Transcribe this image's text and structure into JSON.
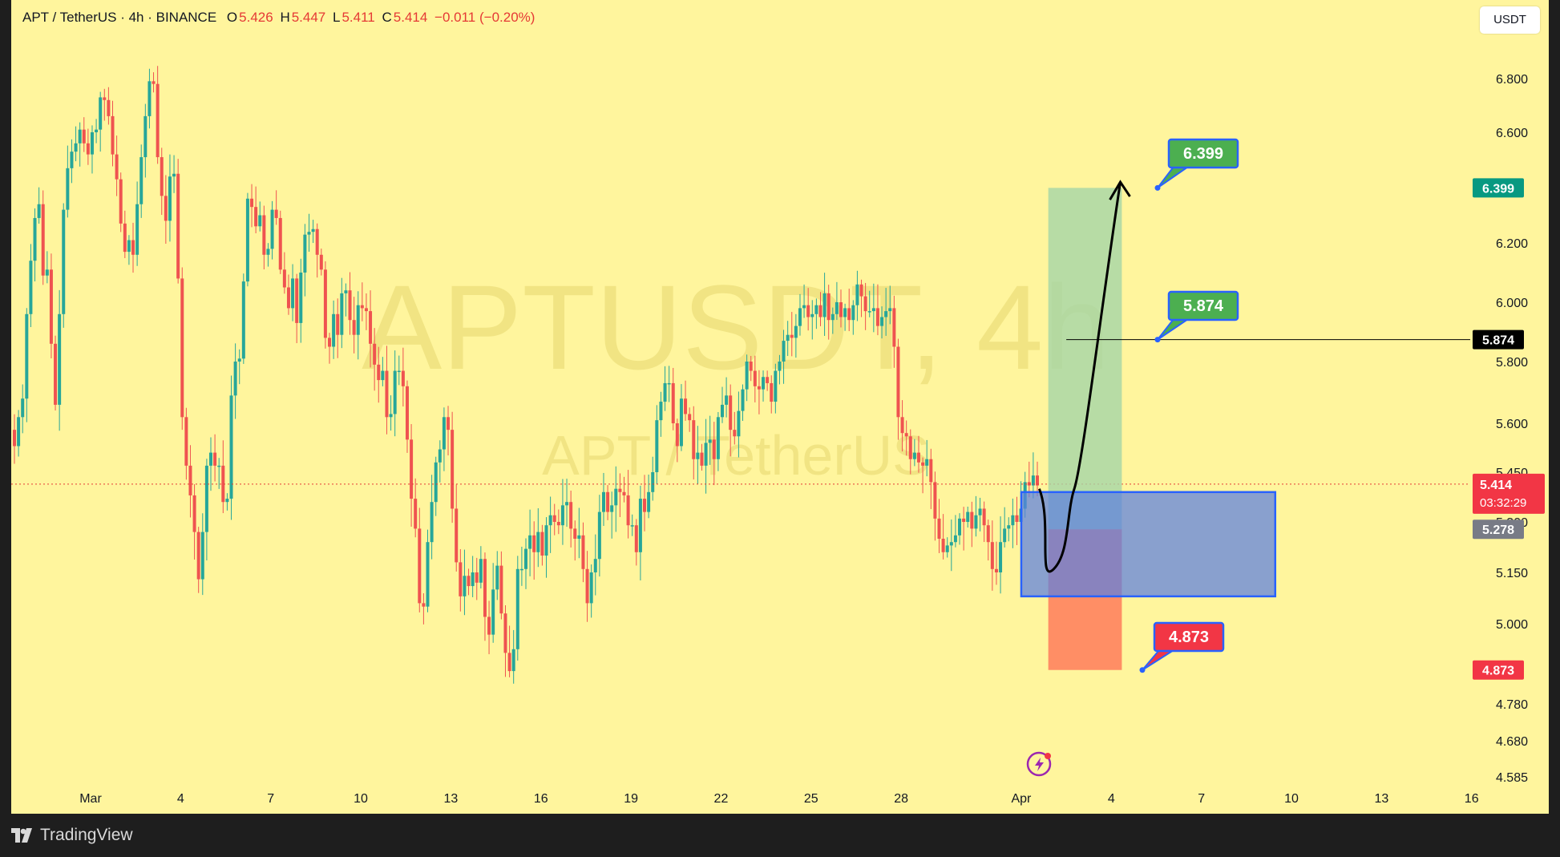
{
  "header": {
    "symbol": "APT / TetherUS · 4h · BINANCE",
    "open_label": "O",
    "open": "5.426",
    "high_label": "H",
    "high": "5.447",
    "low_label": "L",
    "low": "5.411",
    "close_label": "C",
    "close": "5.414",
    "change": "−0.011 (−0.20%)"
  },
  "currency_button": "USDT",
  "watermark": {
    "main": "APTUSDT, 4h",
    "sub": "APT / TetherUS"
  },
  "footer": {
    "brand": "TradingView"
  },
  "colors": {
    "background": "#fff59d",
    "up": "#26a69a",
    "down": "#ef5350",
    "target": "#4caf50",
    "stop": "#f23645",
    "zone": "#5b7fe0",
    "zone_border": "#2962ff"
  },
  "chart_data": {
    "type": "candlestick",
    "y_axis": {
      "ticks": [
        "6.800",
        "6.600",
        "6.200",
        "6.000",
        "5.800",
        "5.600",
        "5.450",
        "5.300",
        "5.150",
        "5.000",
        "4.780",
        "4.680",
        "4.585"
      ],
      "unit": "USDT"
    },
    "x_axis": {
      "ticks": [
        "Mar",
        "4",
        "7",
        "10",
        "13",
        "16",
        "19",
        "22",
        "25",
        "28",
        "Apr",
        "4",
        "7",
        "10",
        "13",
        "16"
      ]
    },
    "current_price": {
      "value": 5.414,
      "label": "5.414",
      "countdown": "03:32:29"
    },
    "price_tags": [
      {
        "label": "6.399",
        "value": 6.399,
        "color": "#089981"
      },
      {
        "label": "5.874",
        "value": 5.874,
        "color": "#000000"
      },
      {
        "label": "5.278",
        "value": 5.278,
        "color": "#787b86"
      },
      {
        "label": "4.873",
        "value": 4.873,
        "color": "#f23645"
      }
    ],
    "position": {
      "entry": 5.278,
      "target": 6.399,
      "stop": 4.873
    },
    "demand_zone": {
      "top": 5.39,
      "bottom": 5.08
    },
    "callouts": [
      {
        "label": "6.399",
        "value": 6.399,
        "color": "#4caf50"
      },
      {
        "label": "5.874",
        "value": 5.874,
        "color": "#4caf50"
      },
      {
        "label": "4.873",
        "value": 4.873,
        "color": "#f23645"
      }
    ],
    "horizontal_line": 5.874,
    "price_path": [
      {
        "date": "Apr 1",
        "price": 5.4
      },
      {
        "date": "Apr 1",
        "price": 5.16
      },
      {
        "date": "Apr 2",
        "price": 5.4
      },
      {
        "date": "Apr 3",
        "price": 5.98
      },
      {
        "date": "Apr 5",
        "price": 6.42
      }
    ],
    "closes": [
      5.53,
      5.62,
      5.68,
      5.96,
      6.14,
      6.29,
      6.34,
      6.09,
      6.11,
      5.86,
      5.66,
      5.96,
      6.32,
      6.47,
      6.53,
      6.56,
      6.61,
      6.56,
      6.52,
      6.6,
      6.61,
      6.73,
      6.72,
      6.66,
      6.52,
      6.43,
      6.27,
      6.17,
      6.21,
      6.16,
      6.34,
      6.51,
      6.66,
      6.79,
      6.78,
      6.51,
      6.37,
      6.28,
      6.44,
      6.45,
      6.08,
      5.62,
      5.47,
      5.38,
      5.27,
      5.13,
      5.27,
      5.47,
      5.51,
      5.47,
      5.47,
      5.36,
      5.37,
      5.69,
      5.8,
      5.81,
      6.07,
      6.36,
      6.33,
      6.26,
      6.3,
      6.16,
      6.18,
      6.32,
      6.29,
      6.11,
      6.05,
      5.98,
      6.08,
      5.93,
      6.1,
      6.23,
      6.24,
      6.25,
      6.16,
      6.11,
      5.88,
      5.85,
      5.96,
      5.89,
      6.03,
      6.04,
      5.94,
      5.89,
      5.99,
      5.98,
      5.97,
      5.86,
      5.79,
      5.74,
      5.77,
      5.62,
      5.63,
      5.77,
      5.77,
      5.72,
      5.55,
      5.37,
      5.28,
      5.06,
      5.05,
      5.24,
      5.36,
      5.48,
      5.52,
      5.62,
      5.58,
      5.34,
      5.18,
      5.08,
      5.14,
      5.11,
      5.15,
      5.12,
      5.19,
      5.02,
      4.97,
      5.1,
      5.17,
      5.03,
      4.92,
      4.87,
      4.93,
      5.16,
      5.16,
      5.22,
      5.26,
      5.21,
      5.27,
      5.2,
      5.29,
      5.32,
      5.3,
      5.29,
      5.35,
      5.36,
      5.28,
      5.25,
      5.26,
      5.16,
      5.06,
      5.15,
      5.19,
      5.33,
      5.39,
      5.33,
      5.35,
      5.4,
      5.39,
      5.38,
      5.29,
      5.29,
      5.21,
      5.37,
      5.33,
      5.39,
      5.45,
      5.61,
      5.67,
      5.73,
      5.73,
      5.6,
      5.53,
      5.68,
      5.63,
      5.61,
      5.49,
      5.51,
      5.47,
      5.54,
      5.55,
      5.49,
      5.62,
      5.66,
      5.69,
      5.58,
      5.56,
      5.64,
      5.71,
      5.8,
      5.77,
      5.72,
      5.71,
      5.75,
      5.73,
      5.67,
      5.77,
      5.8,
      5.87,
      5.89,
      5.88,
      5.92,
      5.98,
      5.99,
      5.95,
      5.96,
      5.99,
      5.95,
      6.03,
      5.94,
      5.96,
      6.0,
      5.95,
      5.98,
      5.94,
      5.99,
      6.06,
      6.02,
      5.97,
      5.97,
      5.98,
      5.92,
      5.95,
      5.97,
      5.98,
      5.85,
      5.62,
      5.57,
      5.56,
      5.49,
      5.51,
      5.48,
      5.47,
      5.49,
      5.42,
      5.31,
      5.25,
      5.21,
      5.23,
      5.24,
      5.26,
      5.31,
      5.3,
      5.33,
      5.28,
      5.32,
      5.34,
      5.29,
      5.24,
      5.16,
      5.15,
      5.24,
      5.28,
      5.29,
      5.32,
      5.3,
      5.34,
      5.42,
      5.41,
      5.44,
      5.41
    ]
  }
}
